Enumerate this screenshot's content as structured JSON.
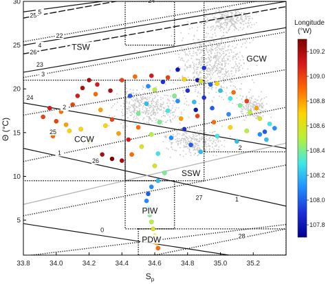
{
  "chart_data": {
    "type": "scatter",
    "title": "",
    "xlabel": "S",
    "xlabel_subscript": "p",
    "ylabel": "Θ (°C)",
    "xlim": [
      33.8,
      35.4
    ],
    "ylim": [
      1,
      30
    ],
    "xticks": [
      "33.8",
      "34.0",
      "34.2",
      "34.4",
      "34.6",
      "34.8",
      "35.0",
      "35.2"
    ],
    "yticks": [
      "5",
      "10",
      "15",
      "20",
      "25",
      "30"
    ],
    "colorbar": {
      "title_line1": "Longitude",
      "title_line2": "(°W)",
      "range": [
        107.7,
        109.3
      ],
      "ticks": [
        "109.2",
        "109.0",
        "108.8",
        "108.6",
        "108.4",
        "108.2",
        "108.0",
        "107.8"
      ],
      "colors": [
        "#7f0000",
        "#d7191c",
        "#ff6a00",
        "#ffd400",
        "#b5f23a",
        "#3ee8e8",
        "#1f8fff",
        "#1c2fd8",
        "#00008f"
      ]
    },
    "water_masses": [
      {
        "label": "TSW",
        "x": 34.15,
        "y": 24.6
      },
      {
        "label": "GCW",
        "x": 35.22,
        "y": 23.3
      },
      {
        "label": "CCW",
        "x": 34.17,
        "y": 14.1
      },
      {
        "label": "SSW",
        "x": 34.82,
        "y": 10.2
      },
      {
        "label": "PIW",
        "x": 34.57,
        "y": 5.9
      },
      {
        "label": "PDW",
        "x": 34.58,
        "y": 2.6
      }
    ],
    "isopycnals_solid": [
      {
        "label": "24",
        "s1": 33.8,
        "t1": 32.4,
        "s2": 35.4,
        "t2": 37.8,
        "lx": 34.58,
        "ly": 30.0
      },
      {
        "label": "25",
        "s1": 33.8,
        "t1": 28.1,
        "s2": 35.4,
        "t2": 33.5,
        "lx": 33.86,
        "ly": 28.3
      },
      {
        "label": "26",
        "s1": 33.8,
        "t1": 24.0,
        "s2": 35.4,
        "t2": 29.4,
        "lx": 33.86,
        "ly": 24.1
      }
    ],
    "isopycnals_dotted": [
      {
        "label": "22",
        "s1": 33.8,
        "t1": 25.4,
        "s2": 35.4,
        "t2": 30.6,
        "lx": 34.02,
        "ly": 26.0
      },
      {
        "label": "23",
        "s1": 33.8,
        "t1": 21.3,
        "s2": 35.4,
        "t2": 26.5,
        "lx": 33.9,
        "ly": 22.7
      },
      {
        "label": "24",
        "s1": 33.8,
        "t1": 17.0,
        "s2": 35.4,
        "t2": 22.2,
        "lx": 33.84,
        "ly": 18.9
      },
      {
        "label": "25",
        "s1": 33.8,
        "t1": 11.7,
        "s2": 35.4,
        "t2": 17.9,
        "lx": 33.98,
        "ly": 15.0
      },
      {
        "label": "26",
        "s1": 33.8,
        "t1": 5.5,
        "s2": 35.4,
        "t2": 11.3,
        "lx": 34.24,
        "ly": 11.7
      },
      {
        "label": "27",
        "s1": 33.85,
        "t1": 1.0,
        "s2": 35.4,
        "t2": 4.5,
        "lx": 34.87,
        "ly": 7.5
      },
      {
        "label": "28",
        "s1": 34.6,
        "t1": 1.0,
        "s2": 35.4,
        "t2": 4.0,
        "lx": 35.13,
        "ly": 3.1
      }
    ],
    "heat_content_lines": [
      {
        "label": "5",
        "s1": 33.8,
        "t1": 28.8,
        "s2": 35.4,
        "t2": 32.8,
        "lx": 33.9,
        "ly": 28.7
      },
      {
        "label": "4",
        "s1": 33.8,
        "t1": 25.0,
        "s2": 35.4,
        "t2": 30.0,
        "lx": 33.9,
        "ly": 24.9
      },
      {
        "label": "3",
        "s1": 33.8,
        "t1": 21.9,
        "s2": 35.4,
        "t2": 27.0,
        "lx": 33.92,
        "ly": 21.6
      },
      {
        "label": "2",
        "s1": 33.8,
        "t1": 18.4,
        "s2": 35.4,
        "t2": 13.2,
        "lx": 34.05,
        "ly": 17.8
      },
      {
        "label": "1",
        "s1": 33.8,
        "t1": 13.2,
        "s2": 35.4,
        "t2": 6.6,
        "lx": 34.02,
        "ly": 12.6
      },
      {
        "label": "0",
        "s1": 33.8,
        "t1": 4.6,
        "s2": 35.4,
        "t2": 0.0,
        "lx": 34.28,
        "ly": 3.8
      }
    ],
    "extra_labels": [
      {
        "label": "2",
        "x": 35.12,
        "y": 13.2
      },
      {
        "label": "1",
        "x": 35.1,
        "y": 7.3
      }
    ],
    "grey_reference_line": {
      "s1": 33.8,
      "t1": 6.8,
      "s2": 35.4,
      "t2": 13.8
    },
    "mass_boxes": [
      {
        "name": "TSW",
        "smin": 34.42,
        "smax": 34.72,
        "tmin": 25,
        "tmax": 30
      },
      {
        "name": "CCW",
        "smin": 33.8,
        "smax": 34.42,
        "tmin": 9.5,
        "tmax": 21
      },
      {
        "name": "GCW",
        "smin": 34.9,
        "smax": 35.4,
        "tmin": 12.8,
        "tmax": 30
      },
      {
        "name": "SSW",
        "smin": 34.42,
        "smax": 34.9,
        "tmin": 9.5,
        "tmax": 21
      },
      {
        "name": "PIW",
        "smin": 34.42,
        "smax": 34.72,
        "tmin": 4.0,
        "tmax": 9.5
      },
      {
        "name": "PDW",
        "smin": 34.5,
        "smax": 35.4,
        "tmin": 1.0,
        "tmax": 4.0
      }
    ],
    "grey_cloud": [
      {
        "s": 34.95,
        "t": 23.0,
        "ds": 0.3,
        "dt": 5.5,
        "n": 650
      },
      {
        "s": 35.05,
        "t": 28.0,
        "ds": 0.2,
        "dt": 1.8,
        "n": 280
      },
      {
        "s": 34.55,
        "t": 18.0,
        "ds": 0.3,
        "dt": 3.0,
        "n": 450
      },
      {
        "s": 34.85,
        "t": 14.0,
        "ds": 0.25,
        "dt": 2.2,
        "n": 300
      },
      {
        "s": 35.2,
        "t": 18.0,
        "ds": 0.12,
        "dt": 2.0,
        "n": 150
      }
    ],
    "observations": [
      {
        "s": 33.92,
        "t": 16.8,
        "lon": 109.0
      },
      {
        "s": 33.96,
        "t": 17.8,
        "lon": 109.1
      },
      {
        "s": 34.0,
        "t": 16.3,
        "lon": 109.0
      },
      {
        "s": 34.03,
        "t": 17.4,
        "lon": 108.9
      },
      {
        "s": 34.06,
        "t": 15.9,
        "lon": 108.8
      },
      {
        "s": 34.1,
        "t": 18.2,
        "lon": 109.0
      },
      {
        "s": 34.13,
        "t": 19.2,
        "lon": 109.1
      },
      {
        "s": 34.16,
        "t": 20.1,
        "lon": 109.2
      },
      {
        "s": 34.2,
        "t": 21.0,
        "lon": 109.2
      },
      {
        "s": 34.24,
        "t": 19.4,
        "lon": 108.9
      },
      {
        "s": 34.27,
        "t": 17.6,
        "lon": 108.8
      },
      {
        "s": 34.3,
        "t": 15.8,
        "lon": 108.7
      },
      {
        "s": 34.34,
        "t": 16.5,
        "lon": 109.0
      },
      {
        "s": 34.38,
        "t": 14.9,
        "lon": 108.8
      },
      {
        "s": 34.2,
        "t": 14.0,
        "lon": 108.6
      },
      {
        "s": 34.15,
        "t": 15.4,
        "lon": 108.7
      },
      {
        "s": 34.28,
        "t": 12.5,
        "lon": 109.2
      },
      {
        "s": 34.34,
        "t": 12.0,
        "lon": 109.3
      },
      {
        "s": 34.4,
        "t": 11.8,
        "lon": 109.2
      },
      {
        "s": 34.46,
        "t": 12.5,
        "lon": 108.9
      },
      {
        "s": 34.52,
        "t": 13.4,
        "lon": 108.6
      },
      {
        "s": 34.58,
        "t": 14.8,
        "lon": 108.5
      },
      {
        "s": 34.63,
        "t": 16.2,
        "lon": 108.4
      },
      {
        "s": 34.68,
        "t": 17.5,
        "lon": 108.3
      },
      {
        "s": 34.74,
        "t": 18.6,
        "lon": 108.1
      },
      {
        "s": 34.8,
        "t": 19.8,
        "lon": 107.9
      },
      {
        "s": 34.86,
        "t": 21.0,
        "lon": 107.8
      },
      {
        "s": 34.9,
        "t": 22.4,
        "lon": 107.9
      },
      {
        "s": 34.94,
        "t": 20.5,
        "lon": 108.0
      },
      {
        "s": 35.0,
        "t": 19.8,
        "lon": 108.2
      },
      {
        "s": 35.06,
        "t": 18.9,
        "lon": 108.3
      },
      {
        "s": 35.12,
        "t": 18.1,
        "lon": 108.4
      },
      {
        "s": 35.18,
        "t": 17.3,
        "lon": 108.5
      },
      {
        "s": 35.24,
        "t": 16.6,
        "lon": 108.6
      },
      {
        "s": 35.3,
        "t": 16.0,
        "lon": 108.3
      },
      {
        "s": 35.33,
        "t": 15.5,
        "lon": 108.1
      },
      {
        "s": 35.27,
        "t": 15.1,
        "lon": 108.0
      },
      {
        "s": 35.22,
        "t": 17.8,
        "lon": 108.8
      },
      {
        "s": 35.16,
        "t": 18.6,
        "lon": 109.0
      },
      {
        "s": 35.08,
        "t": 19.6,
        "lon": 108.9
      },
      {
        "s": 34.98,
        "t": 20.6,
        "lon": 108.7
      },
      {
        "s": 34.88,
        "t": 20.9,
        "lon": 108.6
      },
      {
        "s": 34.78,
        "t": 21.1,
        "lon": 108.7
      },
      {
        "s": 34.68,
        "t": 21.3,
        "lon": 109.0
      },
      {
        "s": 34.58,
        "t": 21.5,
        "lon": 109.1
      },
      {
        "s": 34.48,
        "t": 21.4,
        "lon": 108.9
      },
      {
        "s": 34.4,
        "t": 21.0,
        "lon": 109.0
      },
      {
        "s": 34.6,
        "t": 19.9,
        "lon": 108.5
      },
      {
        "s": 34.72,
        "t": 19.2,
        "lon": 108.4
      },
      {
        "s": 34.84,
        "t": 18.5,
        "lon": 108.2
      },
      {
        "s": 34.95,
        "t": 17.8,
        "lon": 108.0
      },
      {
        "s": 35.05,
        "t": 17.1,
        "lon": 108.1
      },
      {
        "s": 34.76,
        "t": 16.6,
        "lon": 108.8
      },
      {
        "s": 34.86,
        "t": 16.9,
        "lon": 109.0
      },
      {
        "s": 34.96,
        "t": 16.2,
        "lon": 108.9
      },
      {
        "s": 35.06,
        "t": 15.6,
        "lon": 108.7
      },
      {
        "s": 35.16,
        "t": 15.2,
        "lon": 108.5
      },
      {
        "s": 34.5,
        "t": 17.2,
        "lon": 108.4
      },
      {
        "s": 34.55,
        "t": 18.3,
        "lon": 108.2
      },
      {
        "s": 34.45,
        "t": 19.2,
        "lon": 108.0
      },
      {
        "s": 34.5,
        "t": 15.6,
        "lon": 108.9
      },
      {
        "s": 34.44,
        "t": 14.2,
        "lon": 109.1
      },
      {
        "s": 34.62,
        "t": 12.6,
        "lon": 108.3
      },
      {
        "s": 34.7,
        "t": 14.4,
        "lon": 108.1
      },
      {
        "s": 34.78,
        "t": 15.4,
        "lon": 107.9
      },
      {
        "s": 34.82,
        "t": 13.6,
        "lon": 108.0
      },
      {
        "s": 34.88,
        "t": 12.8,
        "lon": 108.2
      },
      {
        "s": 34.85,
        "t": 17.6,
        "lon": 107.8
      },
      {
        "s": 34.9,
        "t": 19.0,
        "lon": 107.9
      },
      {
        "s": 34.65,
        "t": 20.8,
        "lon": 107.9
      },
      {
        "s": 34.74,
        "t": 22.2,
        "lon": 107.8
      },
      {
        "s": 34.56,
        "t": 20.3,
        "lon": 108.1
      },
      {
        "s": 34.6,
        "t": 11.2,
        "lon": 108.6
      },
      {
        "s": 34.66,
        "t": 10.4,
        "lon": 108.4
      },
      {
        "s": 34.62,
        "t": 9.5,
        "lon": 108.2
      },
      {
        "s": 34.58,
        "t": 8.8,
        "lon": 108.1
      },
      {
        "s": 34.56,
        "t": 8.0,
        "lon": 108.0
      },
      {
        "s": 34.55,
        "t": 7.2,
        "lon": 108.1
      },
      {
        "s": 34.56,
        "t": 6.4,
        "lon": 108.2
      },
      {
        "s": 34.57,
        "t": 5.6,
        "lon": 108.4
      },
      {
        "s": 34.58,
        "t": 4.8,
        "lon": 108.5
      },
      {
        "s": 34.59,
        "t": 4.0,
        "lon": 108.6
      },
      {
        "s": 34.6,
        "t": 3.2,
        "lon": 108.7
      },
      {
        "s": 34.61,
        "t": 2.4,
        "lon": 108.8
      },
      {
        "s": 34.62,
        "t": 1.8,
        "lon": 108.9
      },
      {
        "s": 35.28,
        "t": 14.2,
        "lon": 108.2
      },
      {
        "s": 35.24,
        "t": 14.8,
        "lon": 108.1
      },
      {
        "s": 34.98,
        "t": 14.6,
        "lon": 108.3
      },
      {
        "s": 35.1,
        "t": 14.0,
        "lon": 108.2
      },
      {
        "s": 34.25,
        "t": 20.5,
        "lon": 109.1
      },
      {
        "s": 34.33,
        "t": 19.8,
        "lon": 109.2
      },
      {
        "s": 34.08,
        "t": 15.2,
        "lon": 108.7
      },
      {
        "s": 33.98,
        "t": 14.6,
        "lon": 108.9
      }
    ]
  }
}
